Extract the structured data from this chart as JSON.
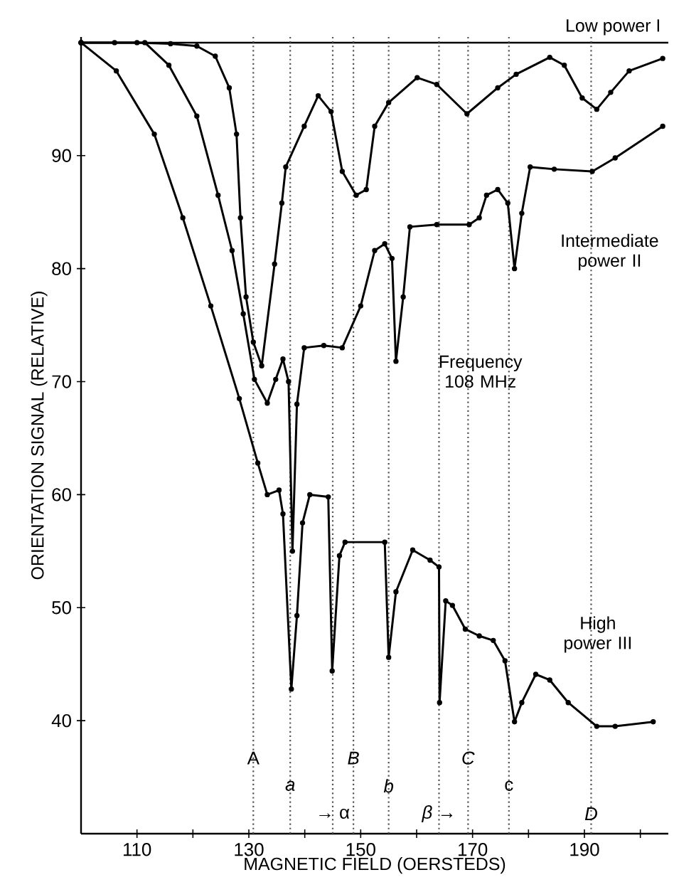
{
  "chart_data": {
    "type": "line",
    "xlabel": "MAGNETIC FIELD (OERSTEDS)",
    "ylabel": "ORIENTATION SIGNAL (RELATIVE)",
    "xlim": [
      100,
      205
    ],
    "ylim": [
      30,
      100.5
    ],
    "xticks": [
      110,
      {
        "value": 120,
        "label": null
      },
      130,
      {
        "value": 140,
        "label": null
      },
      150,
      {
        "value": 160,
        "label": null
      },
      170,
      {
        "value": 180,
        "label": null
      },
      190,
      {
        "value": 200,
        "label": null
      }
    ],
    "yticks": [
      40,
      50,
      60,
      70,
      80,
      90
    ],
    "grid": false,
    "marker": "circle",
    "line_style": "solid",
    "series": [
      {
        "color": "#000000",
        "x": [
          100,
          110,
          116,
          120.7,
          124,
          126.5,
          127.8,
          128.5,
          129.5,
          130.8,
          132.3,
          134.6,
          135.9,
          136.6,
          139.9,
          142.4,
          144.7,
          146.7,
          149.2,
          151,
          152.5,
          155,
          160.1,
          163.6,
          169,
          174.5,
          177.8,
          183.8,
          186.4,
          189.6,
          192.2,
          194.7,
          198,
          204
        ],
        "values": [
          100,
          100,
          99.9,
          99.7,
          98.8,
          96,
          91.9,
          84.5,
          77.5,
          73.5,
          71.4,
          80.4,
          85.8,
          89,
          92.6,
          95.3,
          93.9,
          88.6,
          86.5,
          87,
          92.6,
          94.7,
          96.9,
          96.3,
          93.7,
          96,
          97.2,
          98.7,
          98,
          95.1,
          94.1,
          95.6,
          97.5,
          98.6
        ]
      },
      {
        "color": "#000000",
        "x": [
          100,
          106,
          111.4,
          115.7,
          120.7,
          124.5,
          127,
          129,
          131,
          133.3,
          134.8,
          136.1,
          137.1,
          137.8,
          138.6,
          139.9,
          143.4,
          146.7,
          150,
          152.5,
          154.3,
          155.6,
          156.3,
          157.6,
          158.8,
          163.6,
          169.4,
          171.2,
          172.5,
          174.5,
          176.3,
          177.5,
          178.8,
          180.3,
          184.6,
          191.4,
          195.5,
          204
        ],
        "values": [
          100,
          100,
          100,
          98,
          93.5,
          86.5,
          81.6,
          76,
          70.2,
          68.1,
          70.2,
          72,
          70,
          55,
          68,
          73,
          73.2,
          73,
          76.7,
          81.6,
          82.2,
          80.9,
          71.8,
          77.5,
          83.7,
          83.9,
          83.9,
          84.5,
          86.5,
          87,
          85.8,
          80,
          84.9,
          89,
          88.8,
          88.6,
          89.8,
          92.6
        ]
      },
      {
        "color": "#000000",
        "x": [
          100,
          106.3,
          113.1,
          118.2,
          123.2,
          128.3,
          131.6,
          133.3,
          135.4,
          136.1,
          137.6,
          138.6,
          139.6,
          140.9,
          144.2,
          144.9,
          146.2,
          147.2,
          154.3,
          155,
          156.3,
          159.3,
          162.4,
          164,
          164.1,
          165.2,
          166.4,
          168.7,
          171.2,
          173.7,
          175.8,
          177.5,
          178.8,
          181.3,
          183.8,
          187.1,
          192.2,
          195.5,
          202.3
        ],
        "values": [
          100,
          97.5,
          91.9,
          84.5,
          76.7,
          68.5,
          62.8,
          60,
          60.4,
          58.3,
          42.8,
          49.3,
          57.5,
          60,
          59.8,
          44.4,
          54.6,
          55.8,
          55.8,
          45.6,
          51.4,
          55.1,
          54.2,
          53.6,
          41.6,
          50.6,
          50.2,
          48.1,
          47.5,
          47.1,
          45.3,
          39.9,
          41.6,
          44.1,
          43.6,
          41.6,
          39.5,
          39.5,
          39.9
        ]
      }
    ],
    "ref_lines": [
      {
        "axis": "y",
        "value": 100,
        "line_style": "solid",
        "color": "#000000"
      },
      {
        "axis": "x",
        "value": 130.8,
        "label": "A",
        "line_style": "dotted",
        "color": "#555555"
      },
      {
        "axis": "x",
        "value": 137.4,
        "label": "*a*",
        "line_style": "dotted",
        "color": "#555555"
      },
      {
        "axis": "x",
        "value": 145,
        "label": "→ α",
        "line_style": "dotted",
        "color": "#555555"
      },
      {
        "axis": "x",
        "value": 148.7,
        "label": "*B*",
        "line_style": "dotted",
        "color": "#555555"
      },
      {
        "axis": "x",
        "value": 155,
        "label": "*b*",
        "line_style": "dotted",
        "color": "#555555"
      },
      {
        "axis": "x",
        "value": 164,
        "label": "*β* →",
        "line_style": "dotted",
        "color": "#555555"
      },
      {
        "axis": "x",
        "value": 169.2,
        "label": "*C*",
        "line_style": "dotted",
        "color": "#555555"
      },
      {
        "axis": "x",
        "value": 176.5,
        "label": "c",
        "line_style": "dotted",
        "color": "#555555"
      },
      {
        "axis": "x",
        "value": 191.2,
        "label": "*D*",
        "line_style": "dotted",
        "color": "#555555"
      }
    ],
    "annotations": [
      "Low power I",
      "Intermediate power II",
      "Frequency 108 MHz",
      "High power III"
    ]
  }
}
